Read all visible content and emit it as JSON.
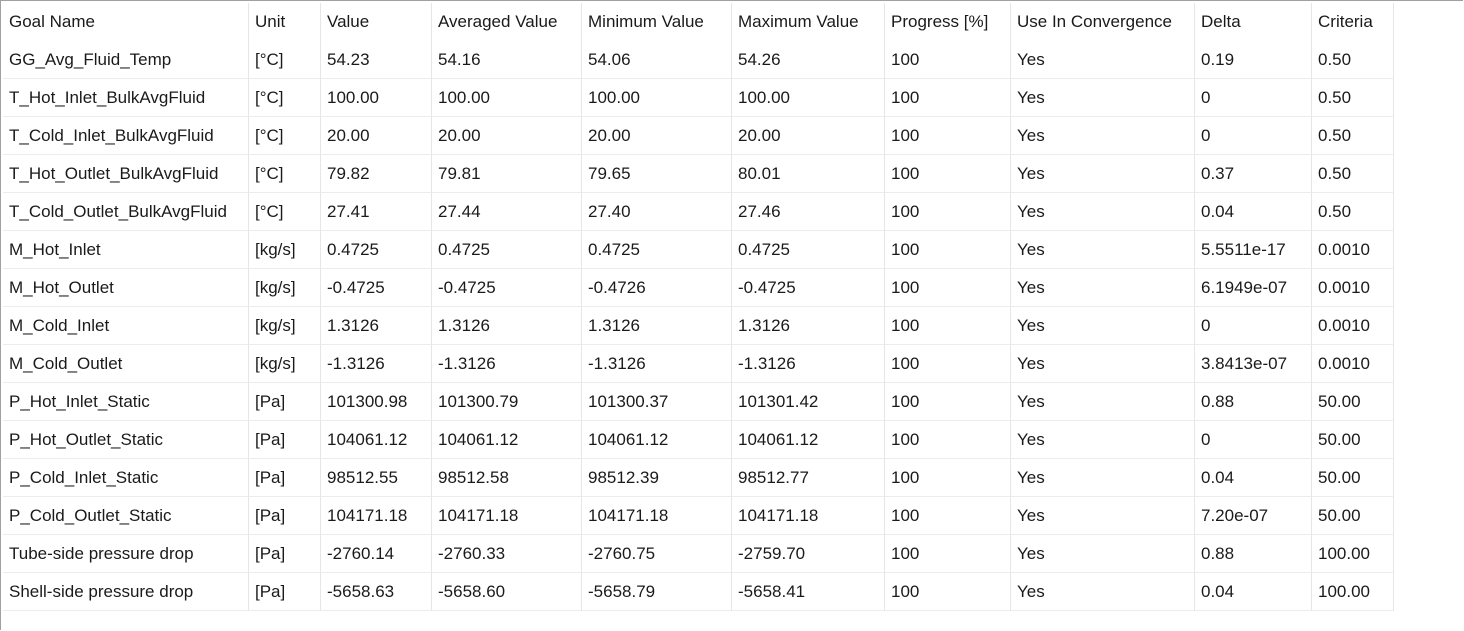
{
  "table": {
    "header": [
      "Goal Name",
      "Unit",
      "Value",
      "Averaged Value",
      "Minimum Value",
      "Maximum Value",
      "Progress [%]",
      "Use In Convergence",
      "Delta",
      "Criteria"
    ],
    "rows": [
      [
        "GG_Avg_Fluid_Temp",
        "[°C]",
        "54.23",
        "54.16",
        "54.06",
        "54.26",
        "100",
        "Yes",
        "0.19",
        "0.50"
      ],
      [
        "T_Hot_Inlet_BulkAvgFluid",
        "[°C]",
        "100.00",
        "100.00",
        "100.00",
        "100.00",
        "100",
        "Yes",
        "0",
        "0.50"
      ],
      [
        "T_Cold_Inlet_BulkAvgFluid",
        "[°C]",
        "20.00",
        "20.00",
        "20.00",
        "20.00",
        "100",
        "Yes",
        "0",
        "0.50"
      ],
      [
        "T_Hot_Outlet_BulkAvgFluid",
        "[°C]",
        "79.82",
        "79.81",
        "79.65",
        "80.01",
        "100",
        "Yes",
        "0.37",
        "0.50"
      ],
      [
        "T_Cold_Outlet_BulkAvgFluid",
        "[°C]",
        "27.41",
        "27.44",
        "27.40",
        "27.46",
        "100",
        "Yes",
        "0.04",
        "0.50"
      ],
      [
        "M_Hot_Inlet",
        "[kg/s]",
        "0.4725",
        "0.4725",
        "0.4725",
        "0.4725",
        "100",
        "Yes",
        "5.5511e-17",
        "0.0010"
      ],
      [
        "M_Hot_Outlet",
        "[kg/s]",
        "-0.4725",
        "-0.4725",
        "-0.4726",
        "-0.4725",
        "100",
        "Yes",
        "6.1949e-07",
        "0.0010"
      ],
      [
        "M_Cold_Inlet",
        "[kg/s]",
        "1.3126",
        "1.3126",
        "1.3126",
        "1.3126",
        "100",
        "Yes",
        "0",
        "0.0010"
      ],
      [
        "M_Cold_Outlet",
        "[kg/s]",
        "-1.3126",
        "-1.3126",
        "-1.3126",
        "-1.3126",
        "100",
        "Yes",
        "3.8413e-07",
        "0.0010"
      ],
      [
        "P_Hot_Inlet_Static",
        "[Pa]",
        "101300.98",
        "101300.79",
        "101300.37",
        "101301.42",
        "100",
        "Yes",
        "0.88",
        "50.00"
      ],
      [
        "P_Hot_Outlet_Static",
        "[Pa]",
        "104061.12",
        "104061.12",
        "104061.12",
        "104061.12",
        "100",
        "Yes",
        "0",
        "50.00"
      ],
      [
        "P_Cold_Inlet_Static",
        "[Pa]",
        "98512.55",
        "98512.58",
        "98512.39",
        "98512.77",
        "100",
        "Yes",
        "0.04",
        "50.00"
      ],
      [
        "P_Cold_Outlet_Static",
        "[Pa]",
        "104171.18",
        "104171.18",
        "104171.18",
        "104171.18",
        "100",
        "Yes",
        "7.20e-07",
        "50.00"
      ],
      [
        "Tube-side pressure drop",
        "[Pa]",
        "-2760.14",
        "-2760.33",
        "-2760.75",
        "-2759.70",
        "100",
        "Yes",
        "0.88",
        "100.00"
      ],
      [
        "Shell-side pressure drop",
        "[Pa]",
        "-5658.63",
        "-5658.60",
        "-5658.79",
        "-5658.41",
        "100",
        "Yes",
        "0.04",
        "100.00"
      ]
    ]
  }
}
